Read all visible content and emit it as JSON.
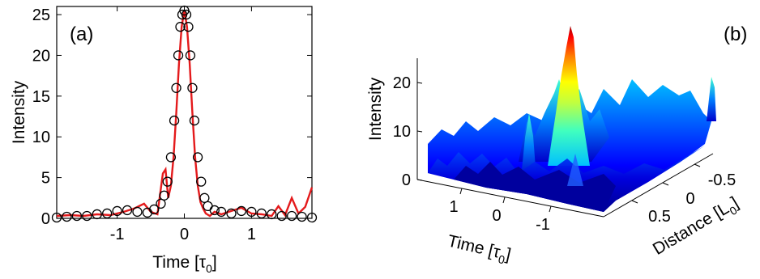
{
  "chart_data": [
    {
      "type": "line",
      "panel_label": "(a)",
      "xlabel_main": "Time [τ",
      "xlabel_sub": "0",
      "xlabel_end": "]",
      "ylabel": "Intensity",
      "xlim": [
        -1.9,
        1.9
      ],
      "ylim": [
        0,
        26
      ],
      "xticks": [
        -1,
        0,
        1
      ],
      "yticks": [
        0,
        5,
        10,
        15,
        20,
        25
      ],
      "series": [
        {
          "marker": "circle",
          "color": "#000000",
          "x": [
            -1.9,
            -1.75,
            -1.6,
            -1.45,
            -1.3,
            -1.15,
            -1.0,
            -0.85,
            -0.7,
            -0.55,
            -0.45,
            -0.35,
            -0.3,
            -0.25,
            -0.2,
            -0.15,
            -0.12,
            -0.09,
            -0.06,
            -0.03,
            0.0,
            0.03,
            0.06,
            0.09,
            0.12,
            0.15,
            0.2,
            0.25,
            0.3,
            0.35,
            0.45,
            0.55,
            0.7,
            0.85,
            1.0,
            1.15,
            1.3,
            1.45,
            1.6,
            1.75,
            1.9
          ],
          "y": [
            0.1,
            0.2,
            0.3,
            0.3,
            0.5,
            0.6,
            0.9,
            1.0,
            0.8,
            0.7,
            1.1,
            1.8,
            2.8,
            4.5,
            7.5,
            12,
            16,
            20,
            23.5,
            25,
            25.5,
            25,
            23.5,
            20,
            16,
            12,
            7.5,
            4.5,
            2.5,
            1.5,
            1.0,
            0.8,
            0.6,
            0.9,
            0.8,
            0.6,
            0.5,
            0.3,
            0.3,
            0.2,
            0.1
          ]
        },
        {
          "marker": "line",
          "color": "#e41a1c",
          "x": [
            -1.9,
            -1.7,
            -1.5,
            -1.3,
            -1.1,
            -0.9,
            -0.75,
            -0.6,
            -0.5,
            -0.4,
            -0.32,
            -0.28,
            -0.24,
            -0.2,
            -0.16,
            -0.12,
            -0.08,
            -0.04,
            0.0,
            0.04,
            0.08,
            0.12,
            0.16,
            0.2,
            0.24,
            0.28,
            0.32,
            0.38,
            0.45,
            0.55,
            0.7,
            0.85,
            1.0,
            1.15,
            1.3,
            1.4,
            1.5,
            1.6,
            1.7,
            1.8,
            1.9
          ],
          "y": [
            0.3,
            0.4,
            0.3,
            0.5,
            0.4,
            0.8,
            1.2,
            1.8,
            0.8,
            0.5,
            5.5,
            6,
            2.5,
            4,
            7.5,
            13,
            19,
            23.5,
            25.5,
            23.5,
            19,
            13,
            7.5,
            4,
            2,
            1.2,
            0.6,
            0.3,
            0.8,
            0.5,
            0.9,
            1.3,
            0.6,
            0.5,
            0.3,
            1.5,
            0.4,
            2.5,
            0.6,
            1.4,
            3.8
          ]
        }
      ]
    },
    {
      "type": "surface",
      "panel_label": "(b)",
      "zlabel": "Intensity",
      "zticks": [
        0,
        10,
        20
      ],
      "time_label_main": "Time [τ",
      "time_label_sub": "0",
      "time_label_end": "]",
      "time_ticks": [
        "1",
        "0",
        "-1"
      ],
      "distance_label_main": "Distance [L",
      "distance_label_sub": "0",
      "distance_label_end": "]",
      "distance_ticks": [
        "-0.5",
        "0",
        "0.5"
      ],
      "colormap": [
        "#00008f",
        "#0000ff",
        "#0080ff",
        "#00ffff",
        "#80ff80",
        "#ffff00",
        "#ff8000",
        "#ff0000",
        "#800000"
      ]
    }
  ]
}
